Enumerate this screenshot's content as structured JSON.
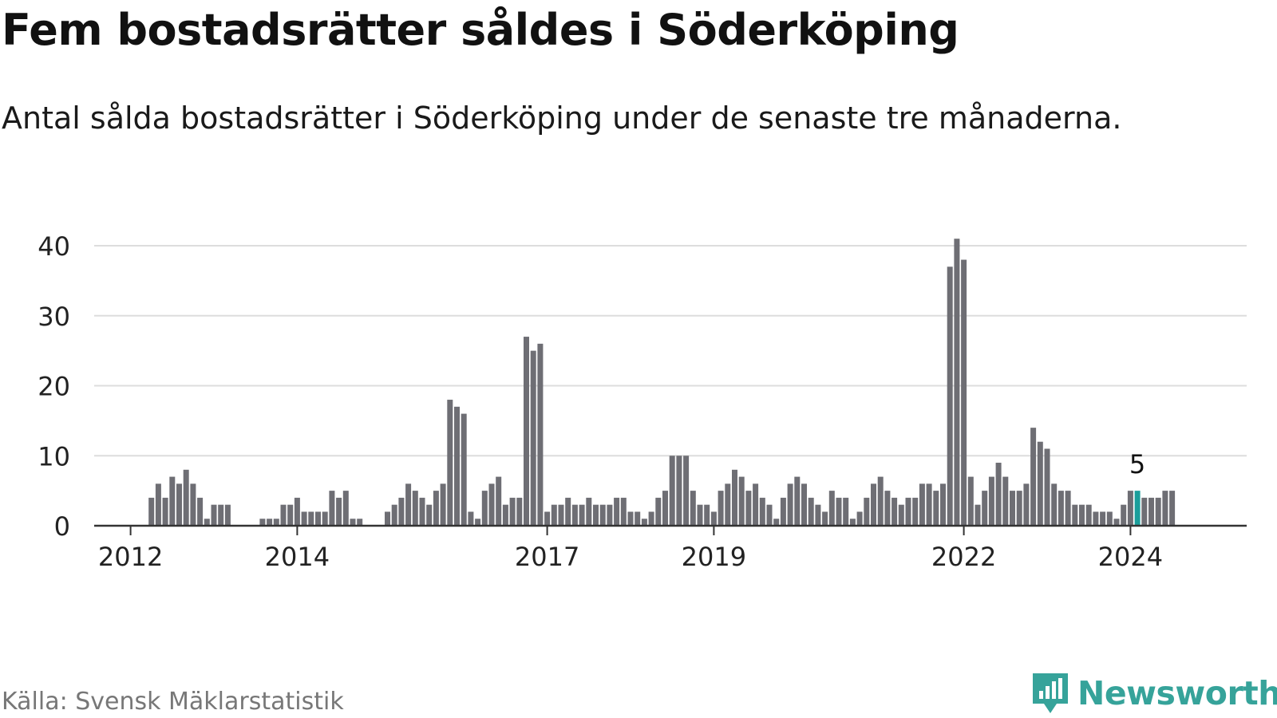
{
  "title": "Fem bostadsrätter såldes i Söderköping",
  "subtitle": "Antal sålda bostadsrätter i Söderköping under de senaste tre månaderna.",
  "source": "Källa: Svensk Mäklarstatistik",
  "brand": "Newsworthy",
  "colors": {
    "bar": "#6e6e74",
    "highlight": "#1b9e9b",
    "grid": "#dddddd",
    "axis": "#333333",
    "brand": "#36a39a"
  },
  "chart_data": {
    "type": "bar",
    "title": "Fem bostadsrätter såldes i Söderköping",
    "xlabel": "",
    "ylabel": "",
    "ylim": [
      0,
      40
    ],
    "yticks": [
      0,
      10,
      20,
      30,
      40
    ],
    "grid": true,
    "x_tick_labels": [
      {
        "label": "2012",
        "year": 2012
      },
      {
        "label": "2014",
        "year": 2014
      },
      {
        "label": "2017",
        "year": 2017
      },
      {
        "label": "2019",
        "year": 2019
      },
      {
        "label": "2022",
        "year": 2022
      },
      {
        "label": "2024",
        "year": 2024
      }
    ],
    "start": "2011-08",
    "values": [
      0,
      0,
      0,
      0,
      0,
      0,
      0,
      0,
      4,
      6,
      4,
      7,
      6,
      8,
      6,
      4,
      1,
      3,
      3,
      3,
      0,
      0,
      0,
      0,
      1,
      1,
      1,
      3,
      3,
      4,
      2,
      2,
      2,
      2,
      5,
      4,
      5,
      1,
      1,
      0,
      0,
      0,
      2,
      3,
      4,
      6,
      5,
      4,
      3,
      5,
      6,
      18,
      17,
      16,
      2,
      1,
      5,
      6,
      7,
      3,
      4,
      4,
      27,
      25,
      26,
      2,
      3,
      3,
      4,
      3,
      3,
      4,
      3,
      3,
      3,
      4,
      4,
      2,
      2,
      1,
      2,
      4,
      5,
      10,
      10,
      10,
      5,
      3,
      3,
      2,
      5,
      6,
      8,
      7,
      5,
      6,
      4,
      3,
      1,
      4,
      6,
      7,
      6,
      4,
      3,
      2,
      5,
      4,
      4,
      1,
      2,
      4,
      6,
      7,
      5,
      4,
      3,
      4,
      4,
      6,
      6,
      5,
      6,
      37,
      41,
      38,
      7,
      3,
      5,
      7,
      9,
      7,
      5,
      5,
      6,
      14,
      12,
      11,
      6,
      5,
      5,
      3,
      3,
      3,
      2,
      2,
      2,
      1,
      3,
      5,
      5,
      4,
      4,
      4,
      5,
      5
    ],
    "highlight": {
      "label": "5",
      "value": 5,
      "index": 150
    }
  }
}
